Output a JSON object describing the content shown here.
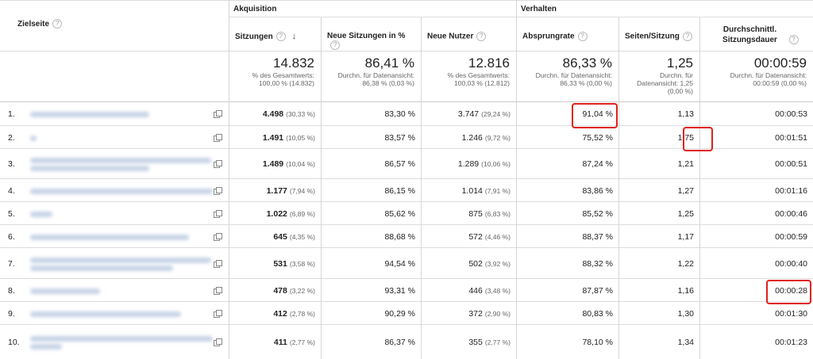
{
  "header": {
    "dimension_label": "Zielseite",
    "group_acquisition": "Akquisition",
    "group_behavior": "Verhalten",
    "columns": [
      "Sitzungen",
      "Neue Sitzungen in %",
      "Neue Nutzer",
      "Absprungrate",
      "Seiten/Sitzung",
      "Durchschnittl. Sitzungsdauer"
    ]
  },
  "totals": [
    {
      "value": "14.832",
      "sub": [
        "% des Gesamtwerts:",
        "100,00 % (14.832)"
      ]
    },
    {
      "value": "86,41 %",
      "sub": [
        "Durchn. für Datenansicht:",
        "86,38 % (0,03 %)"
      ]
    },
    {
      "value": "12.816",
      "sub": [
        "% des Gesamtwerts:",
        "100,03 % (12.812)"
      ]
    },
    {
      "value": "86,33 %",
      "sub": [
        "Durchn. für Datenansicht:",
        "86,33 % (0,00 %)"
      ]
    },
    {
      "value": "1,25",
      "sub": [
        "Durchn. für",
        "Datenansicht: 1,25",
        "(0,00 %)"
      ]
    },
    {
      "value": "00:00:59",
      "sub": [
        "Durchn. für Datenansicht:",
        "00:00:59 (0,00 %)"
      ]
    }
  ],
  "rows": [
    {
      "idx": "1.",
      "sessions": "4.498",
      "sessions_pct": "(30,33 %)",
      "new_pct": "83,30 %",
      "new_users": "3.747",
      "new_users_pct": "(29,24 %)",
      "bounce": "91,04 %",
      "pages": "1,13",
      "duration": "00:00:53"
    },
    {
      "idx": "2.",
      "sessions": "1.491",
      "sessions_pct": "(10,05 %)",
      "new_pct": "83,57 %",
      "new_users": "1.246",
      "new_users_pct": "(9,72 %)",
      "bounce": "75,52 %",
      "pages": "1,75",
      "duration": "00:01:51"
    },
    {
      "idx": "3.",
      "sessions": "1.489",
      "sessions_pct": "(10,04 %)",
      "new_pct": "86,57 %",
      "new_users": "1.289",
      "new_users_pct": "(10,06 %)",
      "bounce": "87,24 %",
      "pages": "1,21",
      "duration": "00:00:51"
    },
    {
      "idx": "4.",
      "sessions": "1.177",
      "sessions_pct": "(7,94 %)",
      "new_pct": "86,15 %",
      "new_users": "1.014",
      "new_users_pct": "(7,91 %)",
      "bounce": "83,86 %",
      "pages": "1,27",
      "duration": "00:01:16"
    },
    {
      "idx": "5.",
      "sessions": "1.022",
      "sessions_pct": "(6,89 %)",
      "new_pct": "85,62 %",
      "new_users": "875",
      "new_users_pct": "(6,83 %)",
      "bounce": "85,52 %",
      "pages": "1,25",
      "duration": "00:00:46"
    },
    {
      "idx": "6.",
      "sessions": "645",
      "sessions_pct": "(4,35 %)",
      "new_pct": "88,68 %",
      "new_users": "572",
      "new_users_pct": "(4,46 %)",
      "bounce": "88,37 %",
      "pages": "1,17",
      "duration": "00:00:59"
    },
    {
      "idx": "7.",
      "sessions": "531",
      "sessions_pct": "(3,58 %)",
      "new_pct": "94,54 %",
      "new_users": "502",
      "new_users_pct": "(3,92 %)",
      "bounce": "88,32 %",
      "pages": "1,22",
      "duration": "00:00:40"
    },
    {
      "idx": "8.",
      "sessions": "478",
      "sessions_pct": "(3,22 %)",
      "new_pct": "93,31 %",
      "new_users": "446",
      "new_users_pct": "(3,48 %)",
      "bounce": "87,87 %",
      "pages": "1,16",
      "duration": "00:00:28"
    },
    {
      "idx": "9.",
      "sessions": "412",
      "sessions_pct": "(2,78 %)",
      "new_pct": "90,29 %",
      "new_users": "372",
      "new_users_pct": "(2,90 %)",
      "bounce": "80,83 %",
      "pages": "1,30",
      "duration": "00:01:30"
    },
    {
      "idx": "10.",
      "sessions": "411",
      "sessions_pct": "(2,77 %)",
      "new_pct": "86,37 %",
      "new_users": "355",
      "new_users_pct": "(2,77 %)",
      "bounce": "78,10 %",
      "pages": "1,34",
      "duration": "00:01:23"
    }
  ],
  "highlights": [
    {
      "row": 0,
      "column": "bounce"
    },
    {
      "row": 1,
      "column": "pages"
    },
    {
      "row": 7,
      "column": "duration"
    }
  ],
  "highlight_color": "#e0201c"
}
